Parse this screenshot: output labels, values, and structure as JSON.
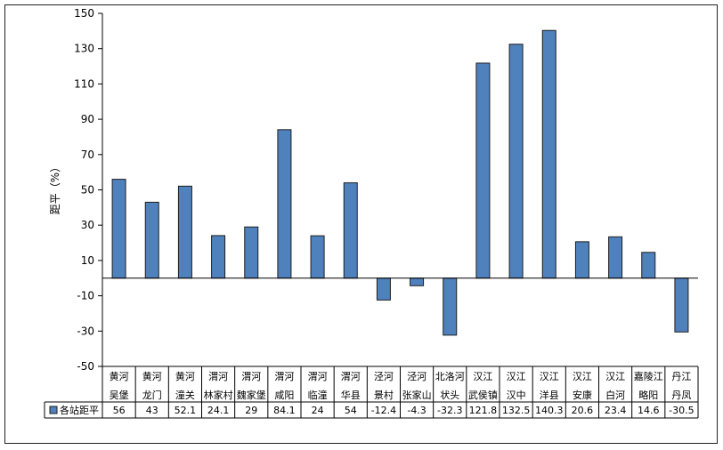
{
  "chart_data": {
    "type": "bar",
    "ylabel": "距平（%）",
    "ylim": [
      -50,
      150
    ],
    "yticks": [
      150,
      130,
      110,
      90,
      70,
      50,
      30,
      10,
      -10,
      -30,
      -50
    ],
    "grid": false,
    "legend_position": "bottom-left (table)",
    "categories": [
      [
        "黄河",
        "吴堡"
      ],
      [
        "黄河",
        "龙门"
      ],
      [
        "黄河",
        "潼关"
      ],
      [
        "渭河",
        "林家村"
      ],
      [
        "渭河",
        "魏家堡"
      ],
      [
        "渭河",
        "咸阳"
      ],
      [
        "渭河",
        "临潼"
      ],
      [
        "渭河",
        "华县"
      ],
      [
        "泾河",
        "景村"
      ],
      [
        "泾河",
        "张家山"
      ],
      [
        "北洛河",
        "状头"
      ],
      [
        "汉江",
        "武侯镇"
      ],
      [
        "汉江",
        "汉中"
      ],
      [
        "汉江",
        "洋县"
      ],
      [
        "汉江",
        "安康"
      ],
      [
        "汉江",
        "白河"
      ],
      [
        "嘉陵江",
        "略阳"
      ],
      [
        "丹江",
        "丹凤"
      ]
    ],
    "series": [
      {
        "name": "各站距平",
        "values": [
          56,
          43,
          52.1,
          24.1,
          29,
          84.1,
          24,
          54,
          -12.4,
          -4.3,
          -32.3,
          121.8,
          132.5,
          140.3,
          20.6,
          23.4,
          14.6,
          -30.5
        ],
        "labels": [
          "56",
          "43",
          "52.1",
          "24.1",
          "29",
          "84.1",
          "24",
          "54",
          "-12.4",
          "-4.3",
          "-32.3",
          "121.8",
          "132.5",
          "140.3",
          "20.6",
          "23.4",
          "14.6",
          "-30.5"
        ]
      }
    ],
    "colors": {
      "bar_fill": "#4F81BD",
      "bar_stroke": "#1F1F1F"
    }
  }
}
